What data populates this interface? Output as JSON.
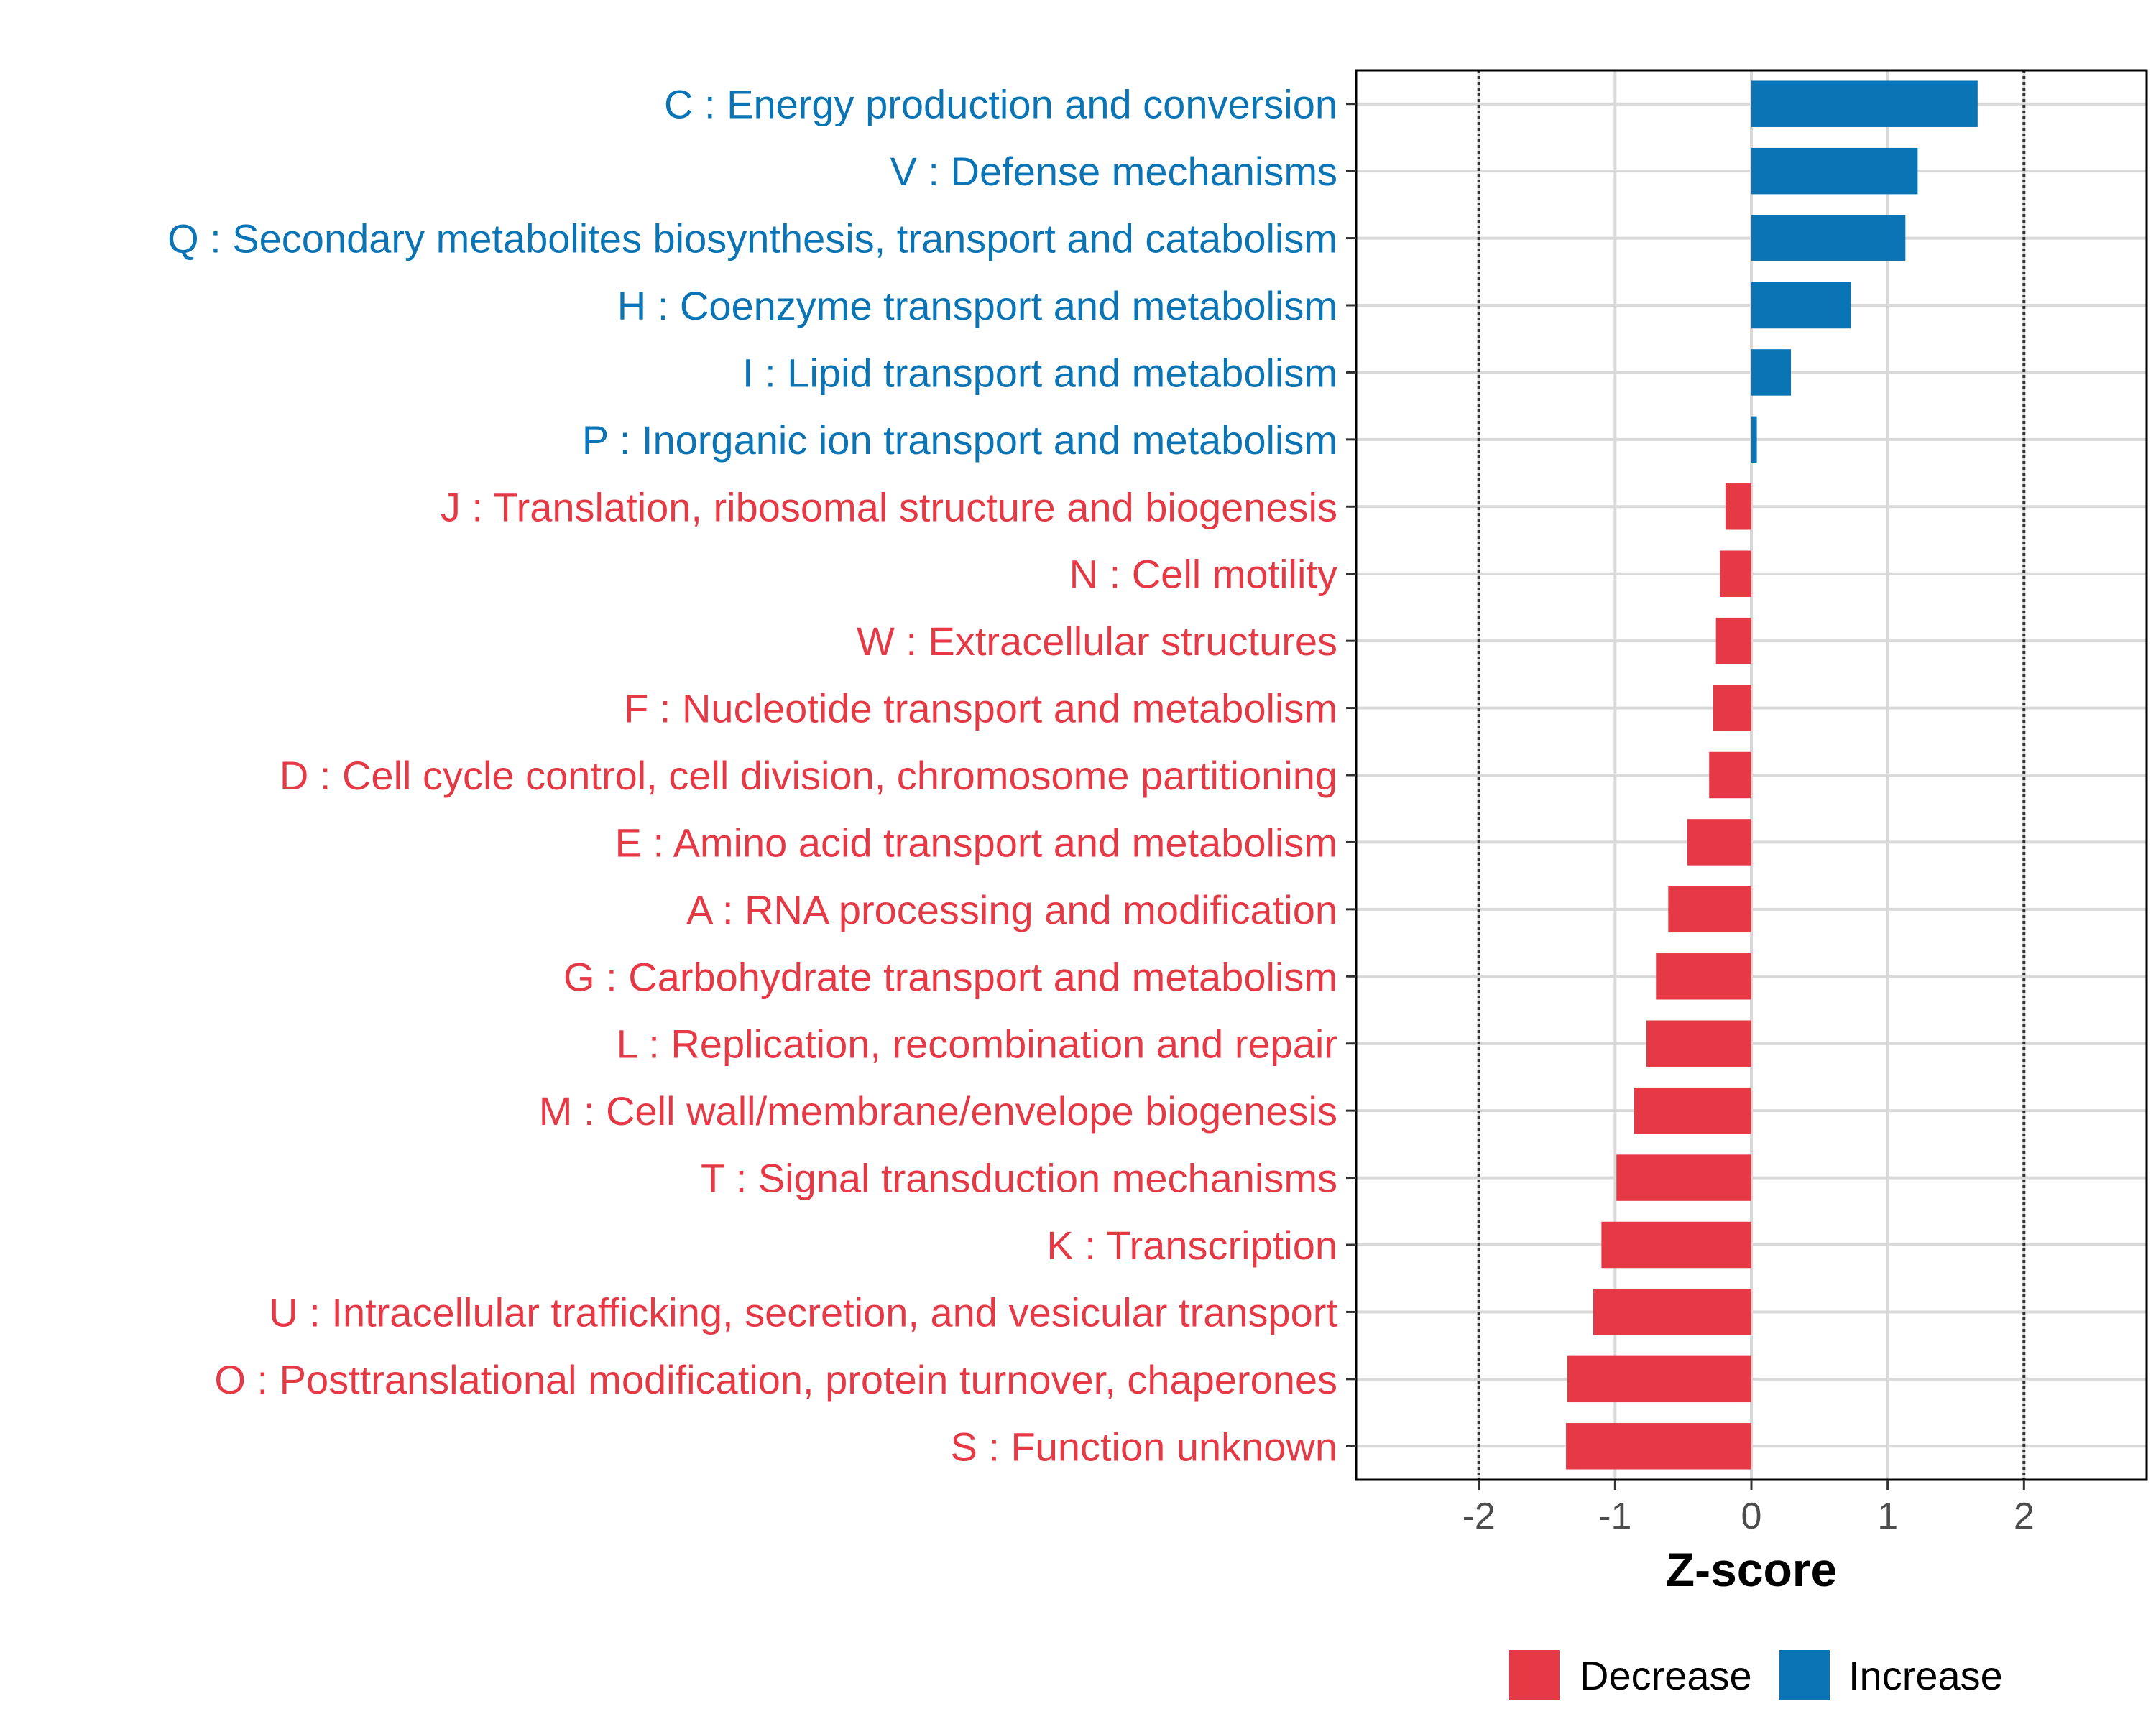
{
  "colors": {
    "increase": "#0a74b5",
    "decrease": "#e63946",
    "grid": "#d9d9d9",
    "panel_border": "#000000",
    "ref_line": "#333333",
    "tick_text": "#4d4d4d"
  },
  "chart_data": {
    "type": "bar",
    "orientation": "horizontal",
    "xlabel": "Z-score",
    "ylabel": "",
    "xlim": [
      -2.9,
      2.9
    ],
    "x_ticks": [
      -2,
      -1,
      0,
      1,
      2
    ],
    "x_tick_labels": [
      "-2",
      "-1",
      "0",
      "1",
      "2"
    ],
    "reference_lines": [
      -2,
      2
    ],
    "grid": true,
    "legend_position": "bottom",
    "legend": [
      {
        "label": "Decrease",
        "key": "decrease"
      },
      {
        "label": "Increase",
        "key": "increase"
      }
    ],
    "categories": [
      "C : Energy production and conversion",
      "V : Defense mechanisms",
      "Q : Secondary metabolites biosynthesis, transport and catabolism",
      "H : Coenzyme transport and metabolism",
      "I : Lipid transport and metabolism",
      "P : Inorganic ion transport and metabolism",
      "J : Translation, ribosomal structure and biogenesis",
      "N : Cell motility",
      "W : Extracellular structures",
      "F : Nucleotide transport and metabolism",
      "D : Cell cycle control, cell division, chromosome partitioning",
      "E : Amino acid transport and metabolism",
      "A : RNA processing and modification",
      "G : Carbohydrate transport and metabolism",
      "L : Replication, recombination and repair",
      "M : Cell wall/membrane/envelope biogenesis",
      "T : Signal transduction mechanisms",
      "K : Transcription",
      "U : Intracellular trafficking, secretion, and vesicular transport",
      "O : Posttranslational modification, protein turnover, chaperones",
      "S : Function unknown"
    ],
    "values": [
      1.66,
      1.22,
      1.13,
      0.73,
      0.29,
      0.04,
      -0.19,
      -0.23,
      -0.26,
      -0.28,
      -0.31,
      -0.47,
      -0.61,
      -0.7,
      -0.77,
      -0.86,
      -0.99,
      -1.1,
      -1.16,
      -1.35,
      -1.36
    ],
    "direction": [
      "increase",
      "increase",
      "increase",
      "increase",
      "increase",
      "increase",
      "decrease",
      "decrease",
      "decrease",
      "decrease",
      "decrease",
      "decrease",
      "decrease",
      "decrease",
      "decrease",
      "decrease",
      "decrease",
      "decrease",
      "decrease",
      "decrease",
      "decrease"
    ]
  }
}
